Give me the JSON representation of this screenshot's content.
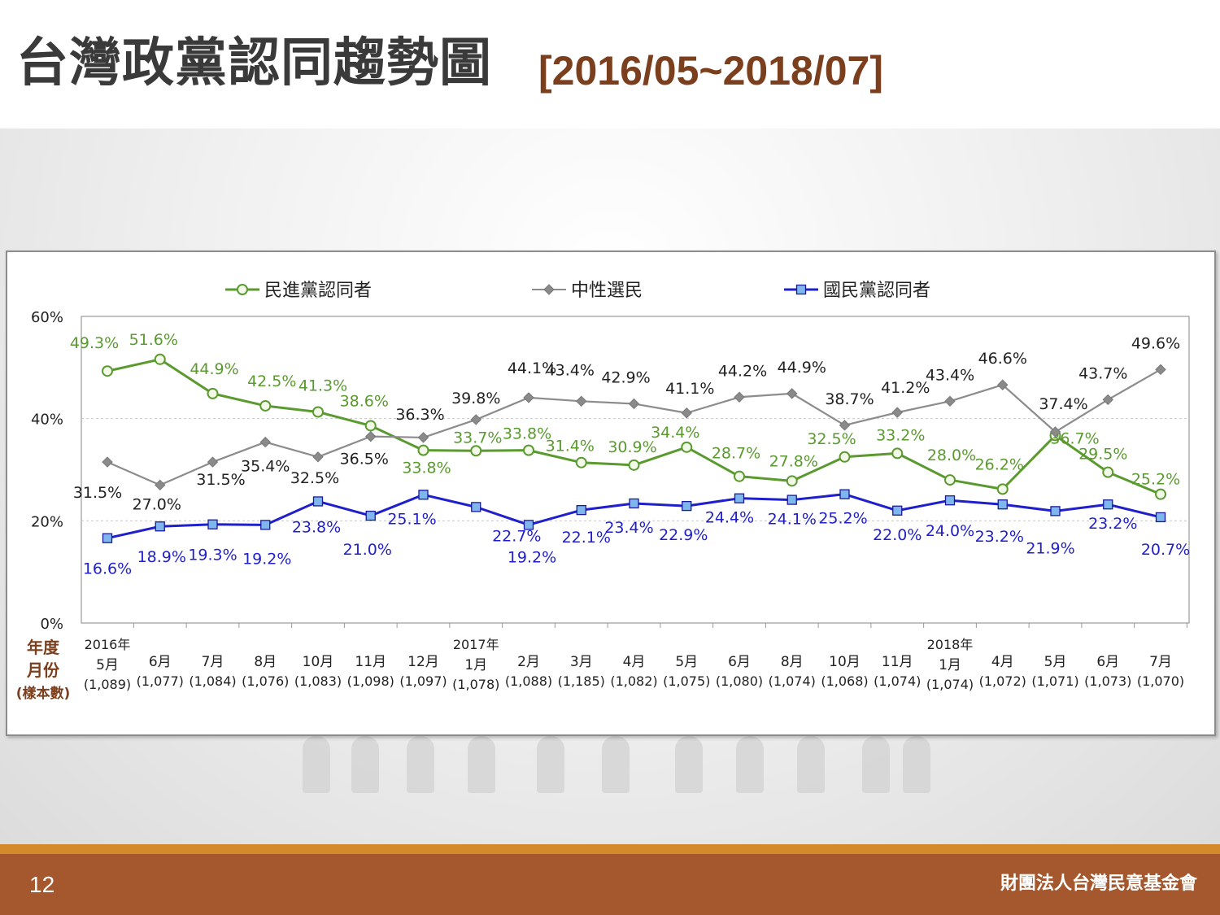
{
  "slide": {
    "title": "台灣政黨認同趨勢圖",
    "date_range": "[2016/05~2018/07]",
    "page_number": "12",
    "organization": "財團法人台灣民意基金會"
  },
  "colors": {
    "green": "#5a9a2f",
    "gray": "#8c8c8c",
    "blue": "#1f1fcc",
    "axis_label_brown": "#7b3f1e",
    "footer": "#a5582d",
    "footer_stripe": "#d28a2a"
  },
  "chart_data": {
    "type": "line",
    "ylim": [
      0,
      60
    ],
    "yticks": [
      "0%",
      "20%",
      "40%",
      "60%"
    ],
    "ytick_values": [
      0,
      20,
      40,
      60
    ],
    "axis_caption": [
      "年度",
      "月份",
      "(樣本數)"
    ],
    "legend_position": "top",
    "grid": "dashed horizontal at 20% and 40%",
    "categories": [
      {
        "year": "2016年",
        "month": "5月",
        "n": "(1,089)"
      },
      {
        "year": "",
        "month": "6月",
        "n": "(1,077)"
      },
      {
        "year": "",
        "month": "7月",
        "n": "(1,084)"
      },
      {
        "year": "",
        "month": "8月",
        "n": "(1,076)"
      },
      {
        "year": "",
        "month": "10月",
        "n": "(1,083)"
      },
      {
        "year": "",
        "month": "11月",
        "n": "(1,098)"
      },
      {
        "year": "",
        "month": "12月",
        "n": "(1,097)"
      },
      {
        "year": "2017年",
        "month": "1月",
        "n": "(1,078)"
      },
      {
        "year": "",
        "month": "2月",
        "n": "(1,088)"
      },
      {
        "year": "",
        "month": "3月",
        "n": "(1,185)"
      },
      {
        "year": "",
        "month": "4月",
        "n": "(1,082)"
      },
      {
        "year": "",
        "month": "5月",
        "n": "(1,075)"
      },
      {
        "year": "",
        "month": "6月",
        "n": "(1,080)"
      },
      {
        "year": "",
        "month": "8月",
        "n": "(1,074)"
      },
      {
        "year": "",
        "month": "10月",
        "n": "(1,068)"
      },
      {
        "year": "",
        "month": "11月",
        "n": "(1,074)"
      },
      {
        "year": "2018年",
        "month": "1月",
        "n": "(1,074)"
      },
      {
        "year": "",
        "month": "4月",
        "n": "(1,072)"
      },
      {
        "year": "",
        "month": "5月",
        "n": "(1,071)"
      },
      {
        "year": "",
        "month": "6月",
        "n": "(1,073)"
      },
      {
        "year": "",
        "month": "7月",
        "n": "(1,070)"
      }
    ],
    "series": [
      {
        "name": "民進黨認同者",
        "color": "#5a9a2f",
        "marker": "circle",
        "values": [
          49.3,
          51.6,
          44.9,
          42.5,
          41.3,
          38.6,
          33.8,
          33.7,
          33.8,
          31.4,
          30.9,
          34.4,
          28.7,
          27.8,
          32.5,
          33.2,
          28.0,
          26.2,
          36.7,
          29.5,
          25.2
        ],
        "labels": [
          "49.3%",
          "51.6%",
          "44.9%",
          "42.5%",
          "41.3%",
          "38.6%",
          "33.8%",
          "33.7%",
          "33.8%",
          "31.4%",
          "30.9%",
          "34.4%",
          "28.7%",
          "27.8%",
          "32.5%",
          "33.2%",
          "28.0%",
          "26.2%",
          "36.7%",
          "29.5%",
          "25.2%"
        ]
      },
      {
        "name": "中性選民",
        "color": "#8c8c8c",
        "marker": "diamond",
        "values": [
          31.5,
          27.0,
          31.5,
          35.4,
          32.5,
          36.5,
          36.3,
          39.8,
          44.1,
          43.4,
          42.9,
          41.1,
          44.2,
          44.9,
          38.7,
          41.2,
          43.4,
          46.6,
          37.4,
          43.7,
          49.6
        ],
        "labels": [
          "31.5%",
          "27.0%",
          "31.5%",
          "35.4%",
          "32.5%",
          "36.5%",
          "36.3%",
          "39.8%",
          "44.1%",
          "43.4%",
          "42.9%",
          "41.1%",
          "44.2%",
          "44.9%",
          "38.7%",
          "41.2%",
          "43.4%",
          "46.6%",
          "37.4%",
          "43.7%",
          "49.6%"
        ]
      },
      {
        "name": "國民黨認同者",
        "color": "#1f1fcc",
        "marker": "square",
        "values": [
          16.6,
          18.9,
          19.3,
          19.2,
          23.8,
          21.0,
          25.1,
          22.7,
          19.2,
          22.1,
          23.4,
          22.9,
          24.4,
          24.1,
          25.2,
          22.0,
          24.0,
          23.2,
          21.9,
          23.2,
          20.7
        ],
        "labels": [
          "16.6%",
          "18.9%",
          "19.3%",
          "19.2%",
          "23.8%",
          "21.0%",
          "25.1%",
          "22.7%",
          "19.2%",
          "22.1%",
          "23.4%",
          "22.9%",
          "24.4%",
          "24.1%",
          "25.2%",
          "22.0%",
          "24.0%",
          "23.2%",
          "21.9%",
          "23.2%",
          "20.7%"
        ]
      }
    ]
  }
}
